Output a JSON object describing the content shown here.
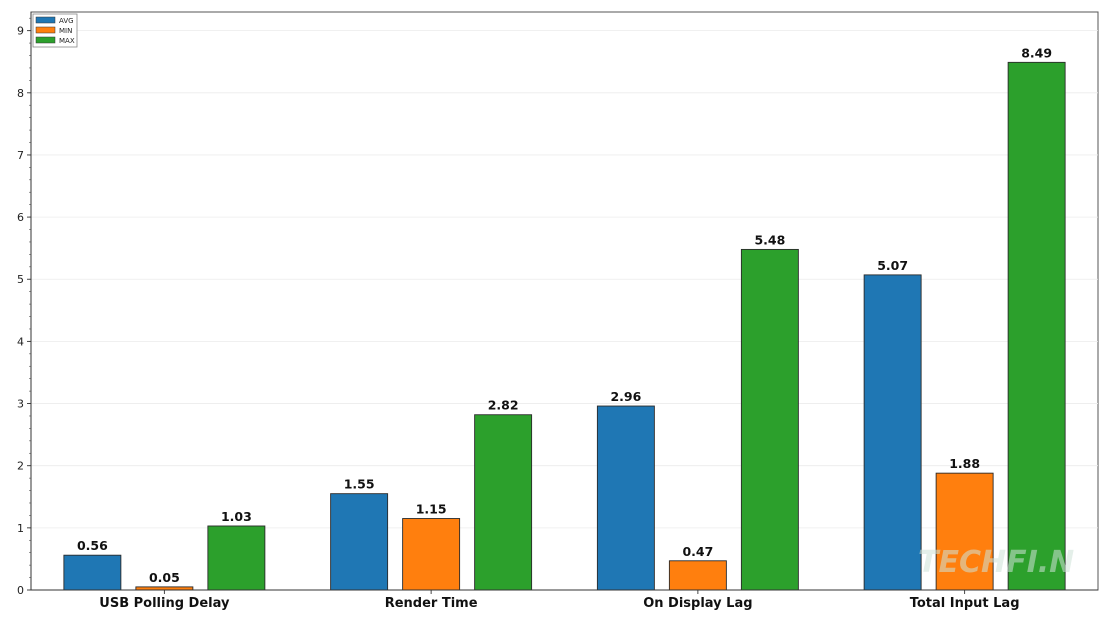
{
  "chart_data": {
    "type": "bar",
    "categories": [
      "USB Polling Delay",
      "Render Time",
      "On Display Lag",
      "Total Input Lag"
    ],
    "series": [
      {
        "name": "AVG",
        "values": [
          0.56,
          1.55,
          2.96,
          5.07
        ],
        "color": "#1f77b4"
      },
      {
        "name": "MIN",
        "values": [
          0.05,
          1.15,
          0.47,
          1.88
        ],
        "color": "#ff7f0e"
      },
      {
        "name": "MAX",
        "values": [
          1.03,
          2.82,
          5.48,
          8.49
        ],
        "color": "#2ca02c"
      }
    ],
    "title": "",
    "xlabel": "",
    "ylabel": "",
    "ylim": [
      0,
      9.3
    ],
    "yticks": [
      0,
      1,
      2,
      3,
      4,
      5,
      6,
      7,
      8,
      9
    ],
    "grid": true,
    "legend_position": "top-left",
    "value_labels": true
  },
  "watermark": {
    "text": "TECHFI.N"
  }
}
